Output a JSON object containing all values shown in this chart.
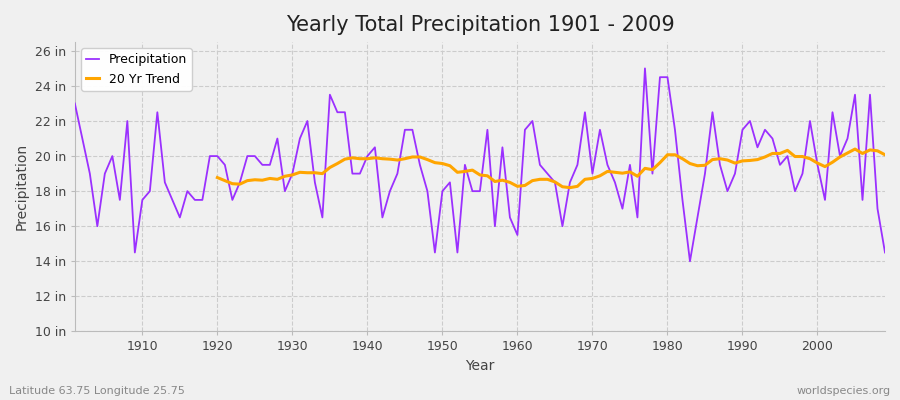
{
  "title": "Yearly Total Precipitation 1901 - 2009",
  "xlabel": "Year",
  "ylabel": "Precipitation",
  "years": [
    1901,
    1902,
    1903,
    1904,
    1905,
    1906,
    1907,
    1908,
    1909,
    1910,
    1911,
    1912,
    1913,
    1914,
    1915,
    1916,
    1917,
    1918,
    1919,
    1920,
    1921,
    1922,
    1923,
    1924,
    1925,
    1926,
    1927,
    1928,
    1929,
    1930,
    1931,
    1932,
    1933,
    1934,
    1935,
    1936,
    1937,
    1938,
    1939,
    1940,
    1941,
    1942,
    1943,
    1944,
    1945,
    1946,
    1947,
    1948,
    1949,
    1950,
    1951,
    1952,
    1953,
    1954,
    1955,
    1956,
    1957,
    1958,
    1959,
    1960,
    1961,
    1962,
    1963,
    1964,
    1965,
    1966,
    1967,
    1968,
    1969,
    1970,
    1971,
    1972,
    1973,
    1974,
    1975,
    1976,
    1977,
    1978,
    1979,
    1980,
    1981,
    1982,
    1983,
    1984,
    1985,
    1986,
    1987,
    1988,
    1989,
    1990,
    1991,
    1992,
    1993,
    1994,
    1995,
    1996,
    1997,
    1998,
    1999,
    2000,
    2001,
    2002,
    2003,
    2004,
    2005,
    2006,
    2007,
    2008,
    2009
  ],
  "precipitation": [
    23.0,
    21.0,
    19.0,
    16.0,
    19.0,
    20.0,
    17.5,
    22.0,
    14.5,
    17.5,
    18.0,
    22.5,
    18.5,
    17.5,
    16.5,
    18.0,
    17.5,
    17.5,
    20.0,
    20.0,
    19.5,
    17.5,
    18.5,
    20.0,
    20.0,
    19.5,
    19.5,
    21.0,
    18.0,
    19.0,
    21.0,
    22.0,
    18.5,
    16.5,
    23.5,
    22.5,
    22.5,
    19.0,
    19.0,
    20.0,
    20.5,
    16.5,
    18.0,
    19.0,
    21.5,
    21.5,
    19.5,
    18.0,
    14.5,
    18.0,
    18.5,
    14.5,
    19.5,
    18.0,
    18.0,
    21.5,
    16.0,
    20.5,
    16.5,
    15.5,
    21.5,
    22.0,
    19.5,
    19.0,
    18.5,
    16.0,
    18.5,
    19.5,
    22.5,
    19.0,
    21.5,
    19.5,
    18.5,
    17.0,
    19.5,
    16.5,
    25.0,
    19.0,
    24.5,
    24.5,
    21.5,
    17.5,
    14.0,
    16.5,
    19.0,
    22.5,
    19.5,
    18.0,
    19.0,
    21.5,
    22.0,
    20.5,
    21.5,
    21.0,
    19.5,
    20.0,
    18.0,
    19.0,
    22.0,
    19.5,
    17.5,
    22.5,
    20.0,
    21.0,
    23.5,
    17.5,
    23.5,
    17.0,
    14.5
  ],
  "precip_color": "#9B30FF",
  "trend_color": "#FFA500",
  "bg_color": "#F0F0F0",
  "plot_bg_color": "#F0F0F0",
  "grid_color": "#CCCCCC",
  "ytick_labels": [
    "10 in",
    "12 in",
    "14 in",
    "16 in",
    "18 in",
    "20 in",
    "22 in",
    "24 in",
    "26 in"
  ],
  "ytick_values": [
    10,
    12,
    14,
    16,
    18,
    20,
    22,
    24,
    26
  ],
  "ylim": [
    10,
    26.5
  ],
  "xlim": [
    1901,
    2009
  ],
  "xtick_values": [
    1910,
    1920,
    1930,
    1940,
    1950,
    1960,
    1970,
    1980,
    1990,
    2000
  ],
  "trend_window": 20,
  "subtitle_left": "Latitude 63.75 Longitude 25.75",
  "subtitle_right": "worldspecies.org",
  "title_fontsize": 15,
  "axis_label_fontsize": 10,
  "tick_fontsize": 9,
  "subtitle_fontsize": 8,
  "legend_items": [
    "Precipitation",
    "20 Yr Trend"
  ]
}
